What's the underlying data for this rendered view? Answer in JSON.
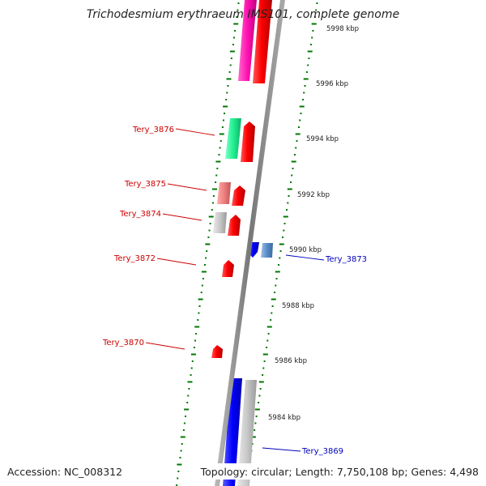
{
  "title": "Trichodesmium erythraeum IMS101, complete genome",
  "footer": {
    "accession": "Accession: NC_008312",
    "summary": "Topology: circular; Length: 7,750,108 bp; Genes: 4,498"
  },
  "axis_ticks": [
    {
      "label": "5998 kbp",
      "value": 5998
    },
    {
      "label": "5996 kbp",
      "value": 5996
    },
    {
      "label": "5994 kbp",
      "value": 5994
    },
    {
      "label": "5992 kbp",
      "value": 5992
    },
    {
      "label": "5990 kbp",
      "value": 5990
    },
    {
      "label": "5988 kbp",
      "value": 5988
    },
    {
      "label": "5986 kbp",
      "value": 5986
    },
    {
      "label": "5984 kbp",
      "value": 5984
    }
  ],
  "gene_labels": [
    {
      "name": "Tery_3876",
      "strand": "forward"
    },
    {
      "name": "Tery_3875",
      "strand": "forward"
    },
    {
      "name": "Tery_3874",
      "strand": "forward"
    },
    {
      "name": "Tery_3872",
      "strand": "forward"
    },
    {
      "name": "Tery_3870",
      "strand": "forward"
    },
    {
      "name": "Tery_3873",
      "strand": "reverse"
    },
    {
      "name": "Tery_3869",
      "strand": "reverse"
    }
  ],
  "colors": {
    "forward_label": "#cc0000",
    "reverse_label": "#0000bb",
    "forward_cds": "#ff0000",
    "reverse_cds": "#0000ee",
    "tick_green": "#007700",
    "backbone": "#888888"
  }
}
